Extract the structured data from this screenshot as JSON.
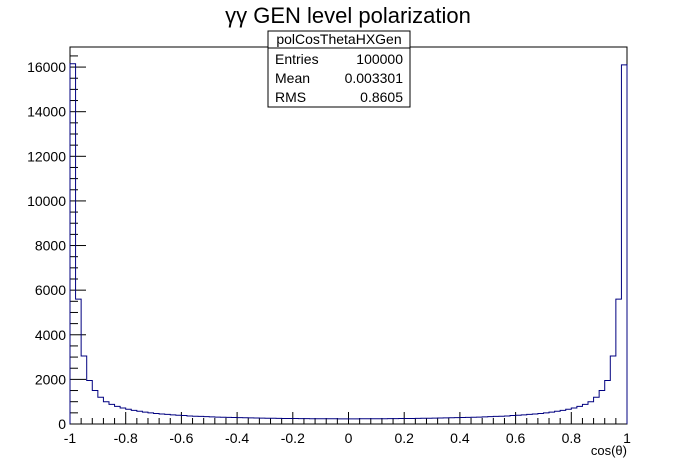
{
  "chart_data": {
    "type": "bar",
    "title": "γγ GEN level polarization",
    "xlabel": "cos(θ)",
    "ylabel": "",
    "xlim": [
      -1,
      1
    ],
    "ylim": [
      0,
      16900
    ],
    "x_ticks": [
      -1,
      -0.8,
      -0.6,
      -0.4,
      -0.2,
      0,
      0.2,
      0.4,
      0.6,
      0.8,
      1
    ],
    "x_tick_labels": [
      "-1",
      "-0.8",
      "-0.6",
      "-0.4",
      "-0.2",
      "0",
      "0.2",
      "0.4",
      "0.6",
      "0.8",
      "1"
    ],
    "y_ticks": [
      0,
      2000,
      4000,
      6000,
      8000,
      10000,
      12000,
      14000,
      16000
    ],
    "y_tick_labels": [
      "0",
      "2000",
      "4000",
      "6000",
      "8000",
      "10000",
      "12000",
      "14000",
      "16000"
    ],
    "bins": 100,
    "line_color": "#000080",
    "values": [
      16150,
      5600,
      3050,
      1950,
      1500,
      1200,
      1000,
      880,
      790,
      720,
      660,
      610,
      570,
      530,
      500,
      470,
      450,
      430,
      410,
      390,
      380,
      360,
      350,
      340,
      330,
      320,
      310,
      300,
      295,
      290,
      285,
      280,
      275,
      270,
      265,
      260,
      255,
      250,
      248,
      246,
      244,
      242,
      240,
      238,
      236,
      235,
      234,
      233,
      232,
      231,
      231,
      232,
      233,
      234,
      235,
      236,
      238,
      240,
      242,
      244,
      246,
      248,
      250,
      255,
      260,
      265,
      270,
      275,
      280,
      285,
      290,
      295,
      300,
      310,
      320,
      330,
      340,
      350,
      360,
      380,
      390,
      410,
      430,
      450,
      470,
      500,
      530,
      570,
      610,
      660,
      720,
      790,
      880,
      1000,
      1200,
      1500,
      1950,
      3050,
      5600,
      16100
    ],
    "stats_box": {
      "name": "polCosThetaHXGen",
      "rows": [
        {
          "label": "Entries",
          "value": "100000"
        },
        {
          "label": "Mean",
          "value": "0.003301"
        },
        {
          "label": "RMS",
          "value": "0.8605"
        }
      ]
    }
  }
}
